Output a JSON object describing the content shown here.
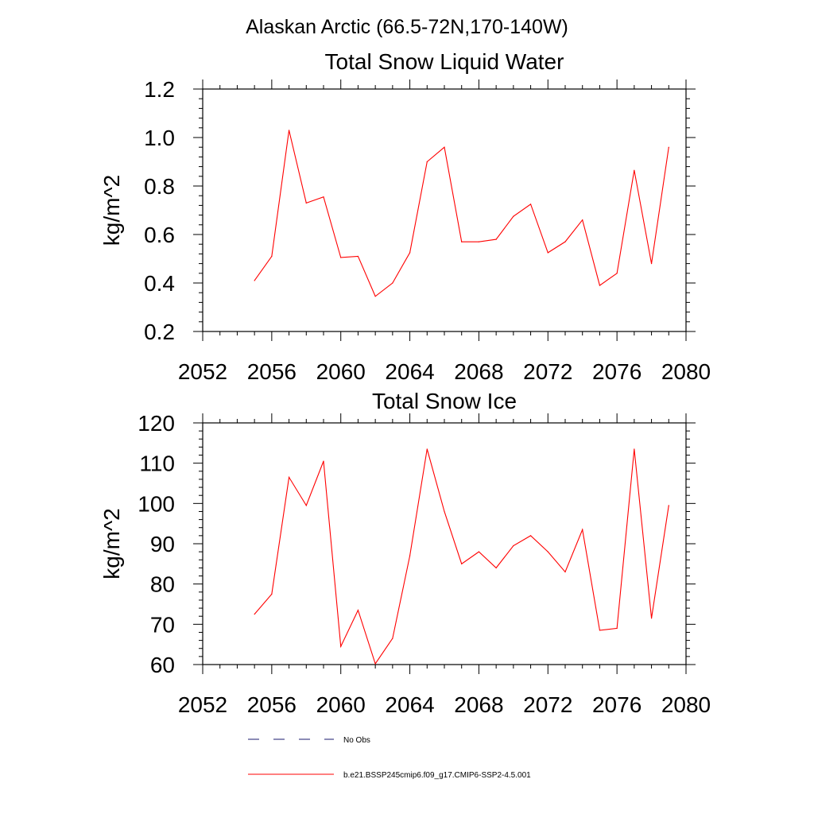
{
  "figure": {
    "title": "Alaskan Arctic (66.5-72N,170-140W)"
  },
  "legend": {
    "items": [
      {
        "label": "No Obs",
        "color": "#1a1a6e",
        "style": "dashed"
      },
      {
        "label": "b.e21.BSSP245cmip6.f09_g17.CMIP6-SSP2-4.5.001",
        "color": "#ff0000",
        "style": "solid"
      }
    ]
  },
  "chart_data": [
    {
      "type": "line",
      "title": "Total Snow Liquid Water",
      "ylabel": "kg/m^2",
      "xlabel": "",
      "xlim": [
        2052,
        2080
      ],
      "ylim": [
        0.2,
        1.2
      ],
      "xticks": [
        2052,
        2056,
        2060,
        2064,
        2068,
        2072,
        2076,
        2080
      ],
      "xtick_labels": [
        "2052",
        "2056",
        "2060",
        "2064",
        "2068",
        "2072",
        "2076",
        "2080"
      ],
      "yticks": [
        0.2,
        0.4,
        0.6,
        0.8,
        1.0,
        1.2
      ],
      "ytick_labels": [
        "0.2",
        "0.4",
        "0.6",
        "0.8",
        "1.0",
        "1.2"
      ],
      "grid": false,
      "series": [
        {
          "name": "b.e21.BSSP245cmip6.f09_g17.CMIP6-SSP2-4.5.001",
          "color": "#ff0000",
          "x": [
            2055,
            2056,
            2057,
            2058,
            2059,
            2060,
            2061,
            2062,
            2063,
            2064,
            2065,
            2066,
            2067,
            2068,
            2069,
            2070,
            2071,
            2072,
            2073,
            2074,
            2075,
            2076,
            2077,
            2078,
            2079
          ],
          "y": [
            0.41,
            0.51,
            1.03,
            0.73,
            0.755,
            0.505,
            0.51,
            0.345,
            0.4,
            0.525,
            0.9,
            0.96,
            0.57,
            0.57,
            0.58,
            0.675,
            0.725,
            0.525,
            0.57,
            0.66,
            0.39,
            0.44,
            0.865,
            0.48,
            0.96
          ]
        }
      ]
    },
    {
      "type": "line",
      "title": "Total Snow Ice",
      "ylabel": "kg/m^2",
      "xlabel": "",
      "xlim": [
        2052,
        2080
      ],
      "ylim": [
        60,
        120
      ],
      "xticks": [
        2052,
        2056,
        2060,
        2064,
        2068,
        2072,
        2076,
        2080
      ],
      "xtick_labels": [
        "2052",
        "2056",
        "2060",
        "2064",
        "2068",
        "2072",
        "2076",
        "2080"
      ],
      "yticks": [
        60,
        70,
        80,
        90,
        100,
        110,
        120
      ],
      "ytick_labels": [
        "60",
        "70",
        "80",
        "90",
        "100",
        "110",
        "120"
      ],
      "grid": false,
      "series": [
        {
          "name": "b.e21.BSSP245cmip6.f09_g17.CMIP6-SSP2-4.5.001",
          "color": "#ff0000",
          "x": [
            2055,
            2056,
            2057,
            2058,
            2059,
            2060,
            2061,
            2062,
            2063,
            2064,
            2065,
            2066,
            2067,
            2068,
            2069,
            2070,
            2071,
            2072,
            2073,
            2074,
            2075,
            2076,
            2077,
            2078,
            2079
          ],
          "y": [
            72.5,
            77.5,
            106.5,
            99.5,
            110.5,
            64.5,
            73.5,
            60.2,
            66.5,
            87,
            113.5,
            98,
            85,
            88,
            84,
            89.5,
            92,
            88,
            83,
            93.5,
            68.5,
            69,
            113.5,
            71.5,
            99.5
          ]
        }
      ]
    }
  ]
}
